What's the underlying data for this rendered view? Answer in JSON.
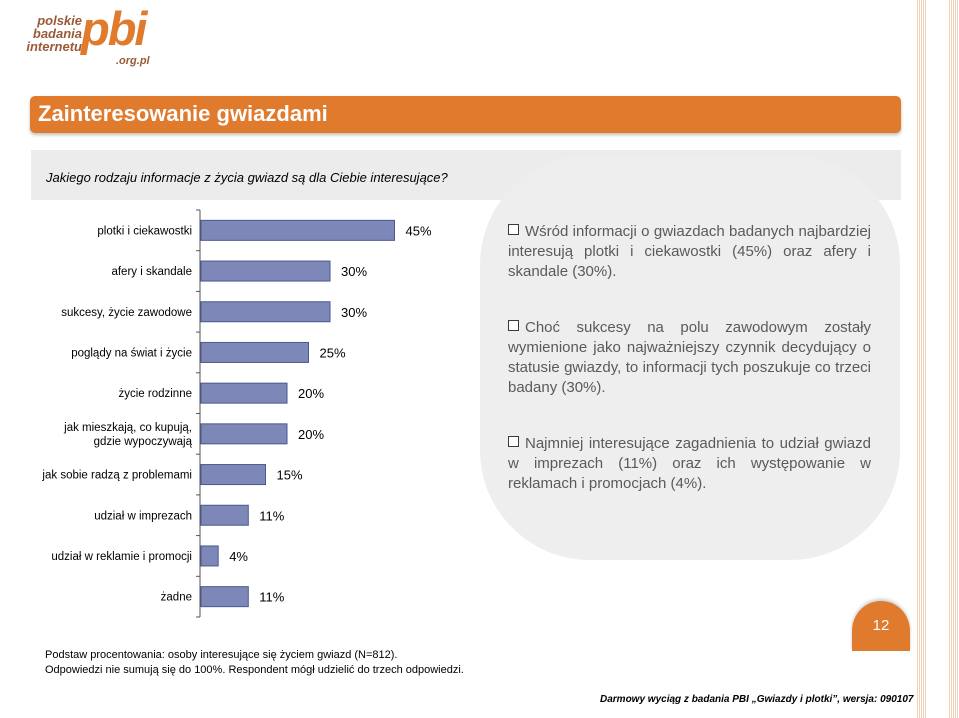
{
  "logo": {
    "line1": "polskie",
    "line2": "badania",
    "line3": "internetu",
    "brand": "pbi",
    "domain": ".org.pl"
  },
  "title": "Zainteresowanie gwiazdami",
  "question": "Jakiego rodzaju informacje z życia gwiazd są dla Ciebie interesujące?",
  "bullets": [
    "Wśród informacji o gwiazdach badanych najbardziej interesują plotki i ciekawostki (45%) oraz afery i skandale (30%).",
    "Choć sukcesy na polu zawodowym zostały wymienione jako najważniejszy czynnik decydujący o statusie gwiazdy, to informacji tych poszukuje co trzeci badany (30%).",
    "Najmniej interesujące zagadnienia to udział gwiazd w imprezach (11%) oraz ich występowanie w reklamach i promocjach (4%)."
  ],
  "chart_data": {
    "type": "bar",
    "orientation": "horizontal",
    "categories": [
      "plotki i ciekawostki",
      "afery i skandale",
      "sukcesy, życie zawodowe",
      "poglądy na świat i życie",
      "życie rodzinne",
      "jak mieszkają, co kupują, gdzie wypoczywają",
      "jak sobie radzą z problemami",
      "udział w imprezach",
      "udział w reklamie i promocji",
      "żadne"
    ],
    "values": [
      45,
      30,
      30,
      25,
      20,
      20,
      15,
      11,
      4,
      11
    ],
    "value_labels": [
      "45%",
      "30%",
      "30%",
      "25%",
      "20%",
      "20%",
      "15%",
      "11%",
      "4%",
      "11%"
    ],
    "xlim": [
      0,
      100
    ],
    "bar_color": "#7d87b8",
    "grid": false
  },
  "base_note": "Podstaw procentowania: osoby interesujące się życiem gwiazd (N=812).",
  "sum_note": "Odpowiedzi nie sumują się do 100%. Respondent mógł udzielić do trzech odpowiedzi.",
  "page_number": "12",
  "footer": "Darmowy wyciąg z badania PBI „Gwiazdy i plotki”, wersja: 090107",
  "colors": {
    "accent": "#e07a2c",
    "bar": "#7d87b8"
  }
}
